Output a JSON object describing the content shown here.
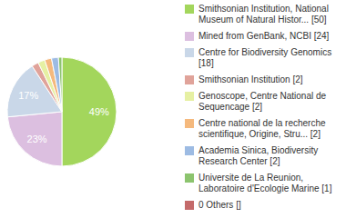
{
  "chart_data": {
    "type": "pie",
    "categories": [
      "Smithsonian Institution, National Museum of Natural Histor... [50]",
      "Mined from GenBank, NCBI [24]",
      "Centre for Biodiversity Genomics [18]",
      "Smithsonian Institution [2]",
      "Genoscope, Centre National de Sequencage [2]",
      "Centre national de la recherche scientifique, Origine, Stru... [2]",
      "Academia Sinica, Biodiversity Research Center [2]",
      "Universite de La Reunion, Laboratoire d'Ecologie Marine [1]",
      "0 Others []"
    ],
    "values": [
      49,
      23,
      17,
      2,
      2,
      2,
      2,
      1,
      0
    ],
    "value_labels": [
      "49%",
      "23%",
      "17%",
      null,
      null,
      null,
      null,
      null,
      null
    ],
    "colors": [
      "#a3d65c",
      "#dcbfe0",
      "#c9d7e8",
      "#e0a39a",
      "#e6f0a3",
      "#f5b97d",
      "#9dbbe3",
      "#8cc46e",
      "#c46a6a"
    ],
    "data_labels": true,
    "legend": "right"
  }
}
